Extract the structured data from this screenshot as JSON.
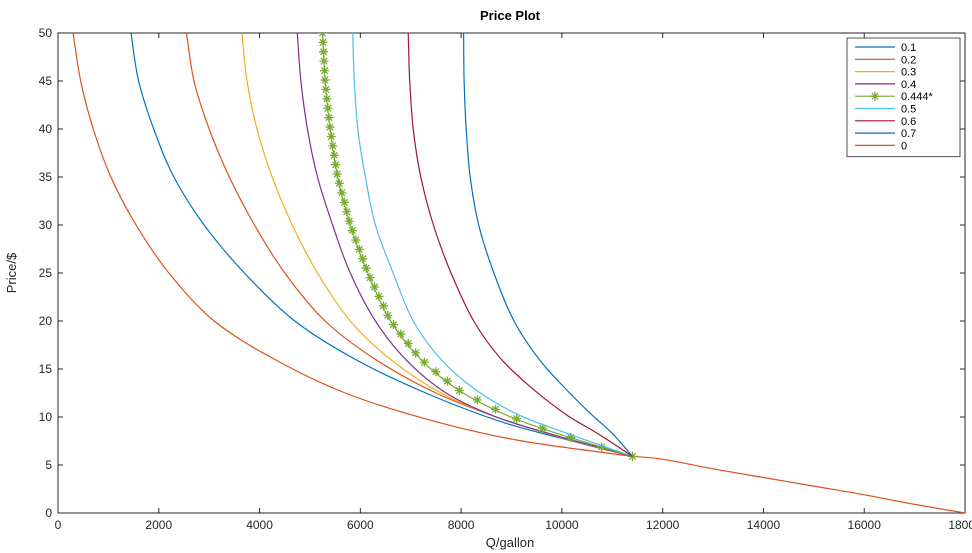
{
  "chart_data": {
    "type": "line",
    "title": "Price Plot",
    "xlabel": "Q/gallon",
    "ylabel": "Price/$",
    "xlim": [
      0,
      18000
    ],
    "ylim": [
      0,
      50
    ],
    "xticks": [
      0,
      2000,
      4000,
      6000,
      8000,
      10000,
      12000,
      14000,
      16000,
      18000
    ],
    "yticks": [
      0,
      5,
      10,
      15,
      20,
      25,
      30,
      35,
      40,
      45,
      50
    ],
    "grid": false,
    "legend_position": "top-right",
    "kink_point": [
      11400,
      5.9
    ],
    "shared_tail": {
      "x": [
        11400,
        12000,
        13000,
        14000,
        15000,
        16000,
        17000,
        18000
      ],
      "y": [
        5.9,
        5.6,
        4.6,
        3.7,
        2.8,
        1.9,
        0.9,
        0.0
      ]
    },
    "series": [
      {
        "name": "0.1",
        "color": "#0072BD",
        "marker": "none",
        "x": [
          1450,
          1600,
          1900,
          2300,
          2900,
          3700,
          4700,
          5900,
          7300,
          8800,
          10200,
          11400
        ],
        "y": [
          50,
          45,
          40,
          35,
          30,
          25,
          20,
          16,
          12.5,
          9.5,
          7.5,
          5.9
        ]
      },
      {
        "name": "0.2",
        "color": "#D95319",
        "marker": "none",
        "x": [
          2550,
          2700,
          3000,
          3400,
          3900,
          4500,
          5300,
          6300,
          7500,
          8800,
          10100,
          11400
        ],
        "y": [
          50,
          45,
          40,
          35,
          30,
          25,
          20,
          16,
          12.5,
          9.8,
          7.7,
          5.9
        ]
      },
      {
        "name": "0.3",
        "color": "#EDB120",
        "marker": "none",
        "x": [
          3650,
          3750,
          3950,
          4250,
          4650,
          5150,
          5800,
          6600,
          7600,
          8700,
          9900,
          11400
        ],
        "y": [
          50,
          45,
          40,
          35,
          30,
          25,
          20,
          16,
          12.5,
          10,
          8,
          5.9
        ]
      },
      {
        "name": "0.4",
        "color": "#7E2F8E",
        "marker": "none",
        "x": [
          4750,
          4820,
          4950,
          5150,
          5450,
          5800,
          6300,
          6900,
          7700,
          8700,
          9800,
          11400
        ],
        "y": [
          50,
          45,
          40,
          35,
          30,
          25,
          20,
          16,
          12.5,
          10,
          8.2,
          5.9
        ]
      },
      {
        "name": "0.444*",
        "color": "#77AC30",
        "marker": "asterisk",
        "x": [
          5250,
          5300,
          5400,
          5550,
          5800,
          6150,
          6600,
          7200,
          7950,
          8900,
          9900,
          11400
        ],
        "y": [
          50,
          45,
          40,
          35,
          30,
          25,
          20,
          16,
          12.8,
          10.2,
          8.3,
          5.9
        ]
      },
      {
        "name": "0.5",
        "color": "#4DBEEE",
        "marker": "none",
        "x": [
          5850,
          5880,
          5950,
          6100,
          6300,
          6650,
          7050,
          7600,
          8300,
          9150,
          10100,
          11400
        ],
        "y": [
          50,
          45,
          40,
          35,
          30,
          25,
          20,
          16,
          12.8,
          10.2,
          8.3,
          5.9
        ]
      },
      {
        "name": "0.6",
        "color": "#A2142F",
        "marker": "none",
        "x": [
          6950,
          6980,
          7050,
          7200,
          7450,
          7800,
          8250,
          8800,
          9450,
          10100,
          10700,
          11400
        ],
        "y": [
          50,
          45,
          40,
          35,
          30,
          25,
          20,
          16,
          12.8,
          10.2,
          8.3,
          5.9
        ]
      },
      {
        "name": "0.7",
        "color": "#0072BD",
        "marker": "none",
        "x": [
          8050,
          8060,
          8100,
          8180,
          8350,
          8650,
          9050,
          9550,
          10100,
          10600,
          11000,
          11400
        ],
        "y": [
          50,
          45,
          40,
          35,
          30,
          25,
          20,
          16,
          12.8,
          10.2,
          8.3,
          5.9
        ]
      },
      {
        "name": "0",
        "color": "#D95319",
        "marker": "none",
        "x": [
          300,
          450,
          700,
          1050,
          1550,
          2200,
          3100,
          4300,
          5700,
          7300,
          9100,
          11400
        ],
        "y": [
          50,
          45,
          40,
          35,
          30,
          25,
          20,
          16,
          12.5,
          9.8,
          7.6,
          5.9
        ]
      }
    ]
  }
}
